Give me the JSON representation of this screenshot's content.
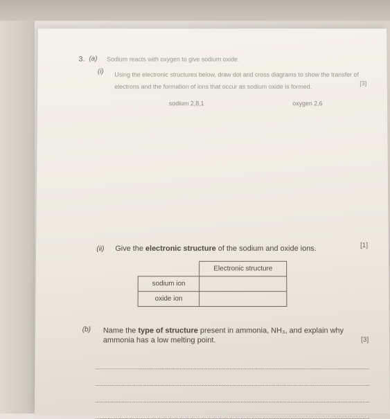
{
  "question": {
    "number": "3.",
    "part_a_label": "(a)",
    "part_a_intro": "Sodium reacts with oxygen to give sodium oxide.",
    "sub_i_label": "(i)",
    "sub_i_text": "Using the electronic structures below, draw dot and cross diagrams to show the transfer of electrons and the formation of ions that occur as sodium oxide is formed.",
    "sub_i_mark": "[3]",
    "sodium_label": "sodium 2,8,1",
    "oxygen_label": "oxygen 2,6",
    "sub_ii_label": "(ii)",
    "sub_ii_text_pre": "Give the ",
    "sub_ii_text_bold": "electronic structure",
    "sub_ii_text_post": " of the sodium and oxide ions.",
    "sub_ii_mark": "[1]",
    "table_header": "Electronic structure",
    "table_row1": "sodium ion",
    "table_row2": "oxide ion",
    "part_b_label": "(b)",
    "part_b_text_1": "Name the ",
    "part_b_bold": "type of structure",
    "part_b_text_2": " present in ammonia, NH₃, and explain why ammonia has a low melting point.",
    "part_b_mark": "[3]"
  }
}
